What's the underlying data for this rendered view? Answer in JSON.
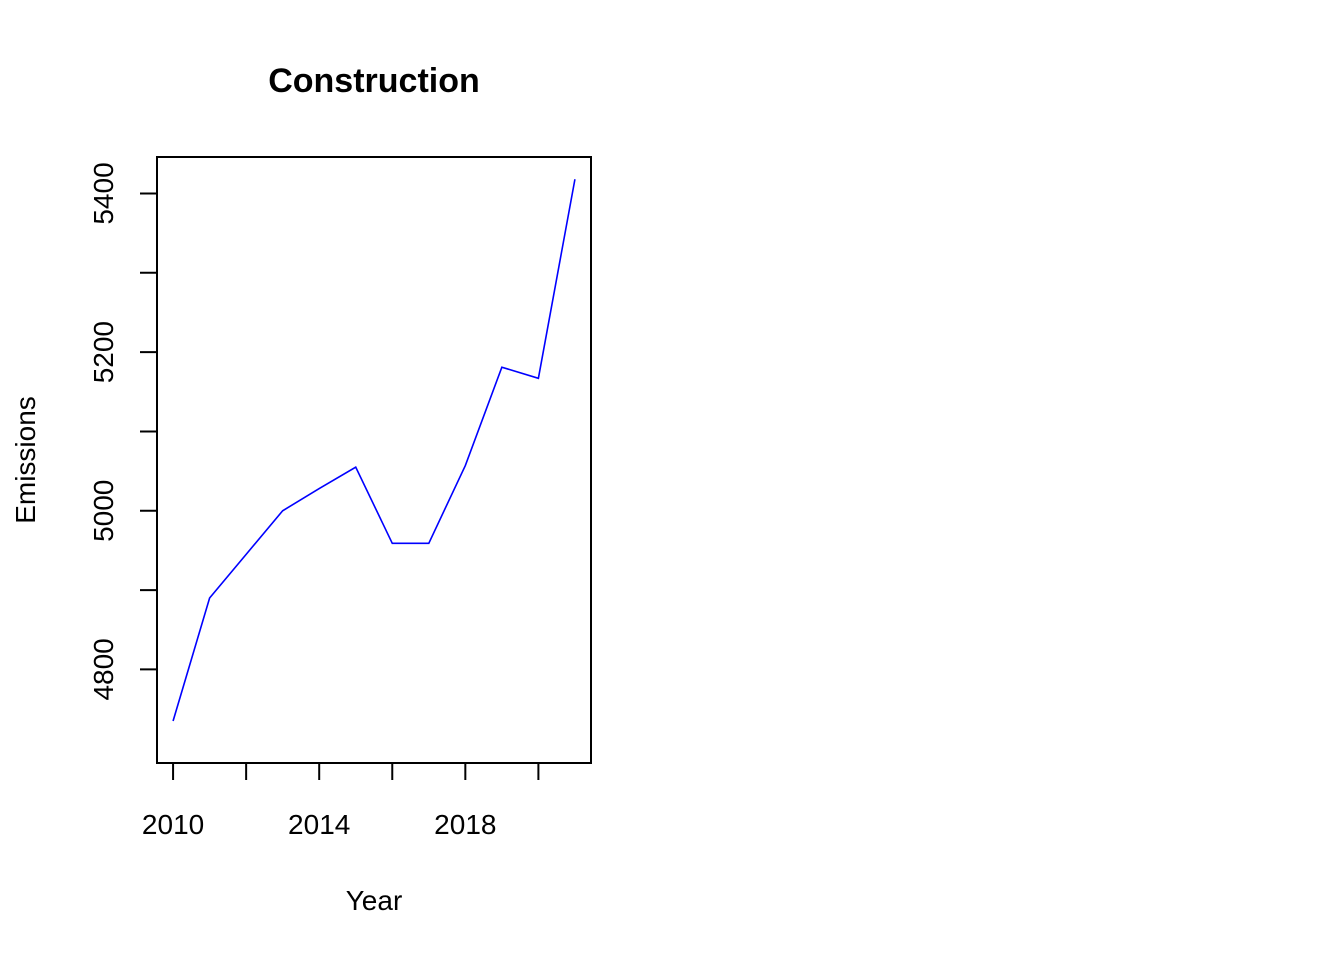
{
  "chart_data": {
    "type": "line",
    "title": "Construction",
    "xlabel": "Year",
    "ylabel": "Emissions",
    "x": [
      2010,
      2011,
      2012,
      2013,
      2014,
      2015,
      2016,
      2017,
      2018,
      2019,
      2020,
      2021
    ],
    "series": [
      {
        "values": [
          4735,
          4890,
          4945,
          5000,
          5028,
          5055,
          4959,
          4959,
          5057,
          5181,
          5167,
          5418
        ],
        "color": "#0000ff"
      }
    ],
    "xlim": [
      2009.56,
      2021.44
    ],
    "ylim": [
      4682,
      5446
    ],
    "x_tick_marks": [
      2010,
      2012,
      2014,
      2016,
      2018,
      2020
    ],
    "x_tick_labels": [
      "2010",
      "2014",
      "2018"
    ],
    "y_ticks": [
      4800,
      4900,
      5000,
      5100,
      5200,
      5300,
      5400
    ],
    "y_tick_labels": [
      "4800",
      "5000",
      "5200",
      "5400"
    ],
    "grid": false,
    "legend": "none"
  }
}
